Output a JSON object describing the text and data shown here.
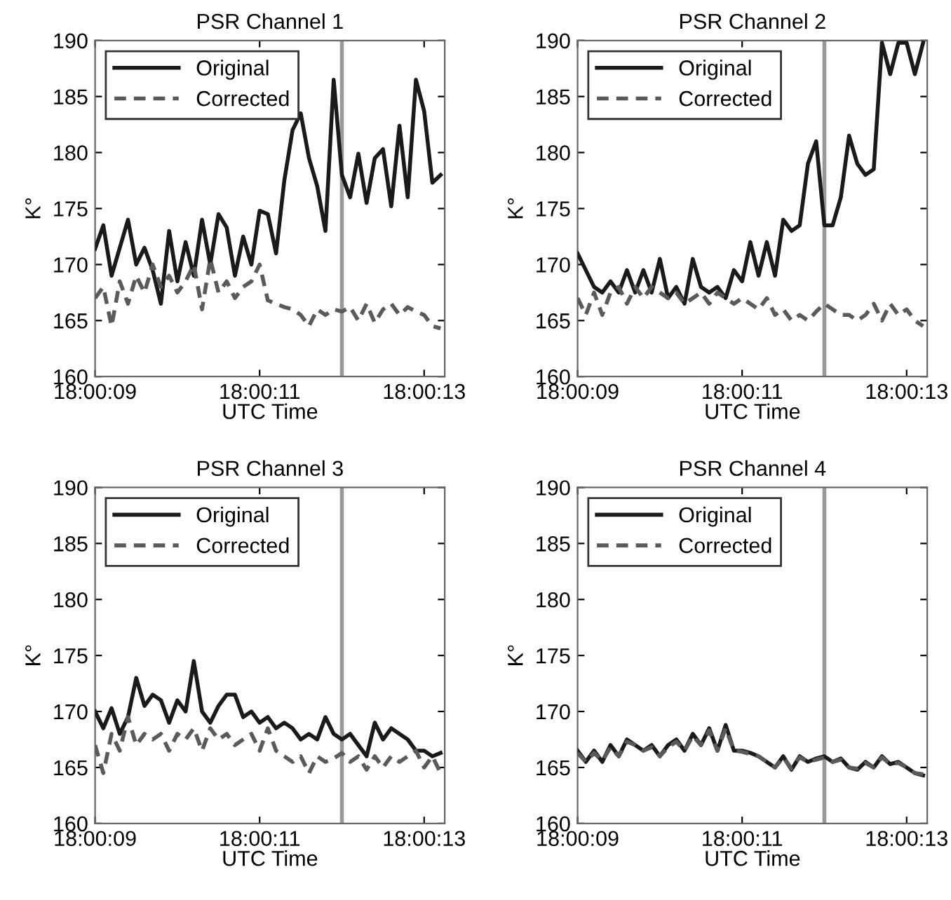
{
  "chart_data": [
    {
      "type": "line",
      "title": "PSR Channel 1",
      "xlabel": "UTC Time",
      "ylabel": "K°",
      "xlim": [
        18.0025,
        18.0036806
      ],
      "ylim": [
        160,
        190
      ],
      "xticks": [
        {
          "value": 18.0025,
          "label": "18:00:09"
        },
        {
          "value": 18.0030556,
          "label": "18:00:11"
        },
        {
          "value": 18.0036111,
          "label": "18:00:13"
        }
      ],
      "yticks": [
        160,
        165,
        170,
        175,
        180,
        185,
        190
      ],
      "grid": false,
      "legend": "top left",
      "ref_lines": [
        {
          "axis": "x",
          "value": 18.0033333,
          "color": "#999999"
        }
      ],
      "x": [
        18.0025,
        18.0025278,
        18.0025556,
        18.0025833,
        18.0026111,
        18.0026389,
        18.0026667,
        18.0026944,
        18.0027222,
        18.00275,
        18.0027778,
        18.0028056,
        18.0028333,
        18.0028611,
        18.0028889,
        18.0029167,
        18.0029444,
        18.0029722,
        18.003,
        18.0030278,
        18.0030556,
        18.0030833,
        18.0031111,
        18.0031389,
        18.0031667,
        18.0031944,
        18.0032222,
        18.00325,
        18.0032778,
        18.0033056,
        18.0033333,
        18.0033611,
        18.0033889,
        18.0034167,
        18.0034444,
        18.0034722,
        18.0035,
        18.0035278,
        18.0035556,
        18.0035833,
        18.0036111,
        18.0036389,
        18.0036667
      ],
      "series": [
        {
          "name": "Original",
          "color": "#1a1a1a",
          "line_style": "solid",
          "values": [
            171.4,
            173.5,
            169,
            171.5,
            174,
            170,
            171.5,
            169.5,
            166.5,
            173,
            168.5,
            172,
            169,
            174,
            170,
            174.5,
            173.3,
            169,
            172.5,
            170,
            174.8,
            174.5,
            171,
            177.5,
            182,
            183.5,
            179.5,
            177,
            173,
            186.5,
            178,
            176,
            179.9,
            175.5,
            179.5,
            180.3,
            175.2,
            182.4,
            176,
            186.5,
            183.7,
            177.3,
            178
          ]
        },
        {
          "name": "Corrected",
          "color": "#5a5a5a",
          "line_style": "dashed",
          "values": [
            167,
            168,
            164.5,
            168.5,
            166.5,
            169,
            167.5,
            170,
            168,
            169,
            167.5,
            168.5,
            170,
            166,
            170.5,
            167.5,
            168.5,
            167,
            168,
            168.5,
            170,
            166.8,
            166.5,
            166.2,
            166,
            165.5,
            164.5,
            166,
            165.5,
            166,
            165.8,
            166.2,
            165,
            166.5,
            164.8,
            166,
            166.5,
            165.5,
            166.2,
            165.8,
            165.5,
            164.5,
            164.3
          ]
        }
      ]
    },
    {
      "type": "line",
      "title": "PSR Channel 2",
      "xlabel": "UTC Time",
      "ylabel": "K°",
      "xlim": [
        18.0025,
        18.0036806
      ],
      "ylim": [
        160,
        190
      ],
      "xticks": [
        {
          "value": 18.0025,
          "label": "18:00:09"
        },
        {
          "value": 18.0030556,
          "label": "18:00:11"
        },
        {
          "value": 18.0036111,
          "label": "18:00:13"
        }
      ],
      "yticks": [
        160,
        165,
        170,
        175,
        180,
        185,
        190
      ],
      "grid": false,
      "legend": "top left",
      "ref_lines": [
        {
          "axis": "x",
          "value": 18.0033333,
          "color": "#999999"
        }
      ],
      "x": [
        18.0025,
        18.0025278,
        18.0025556,
        18.0025833,
        18.0026111,
        18.0026389,
        18.0026667,
        18.0026944,
        18.0027222,
        18.00275,
        18.0027778,
        18.0028056,
        18.0028333,
        18.0028611,
        18.0028889,
        18.0029167,
        18.0029444,
        18.0029722,
        18.003,
        18.0030278,
        18.0030556,
        18.0030833,
        18.0031111,
        18.0031389,
        18.0031667,
        18.0031944,
        18.0032222,
        18.00325,
        18.0032778,
        18.0033056,
        18.0033333,
        18.0033611,
        18.0033889,
        18.0034167,
        18.0034444,
        18.0034722,
        18.0035,
        18.0035278,
        18.0035556,
        18.0035833,
        18.0036111,
        18.0036389,
        18.0036667
      ],
      "series": [
        {
          "name": "Original",
          "color": "#1a1a1a",
          "line_style": "solid",
          "values": [
            171,
            169.5,
            168,
            167.5,
            168.5,
            167.5,
            169.5,
            167.5,
            169.5,
            167.5,
            170.5,
            167,
            168,
            166.5,
            170.5,
            168,
            167.5,
            168,
            167,
            169.5,
            168.5,
            172,
            169,
            172,
            169,
            174,
            173,
            173.5,
            179,
            181,
            173.5,
            173.5,
            176,
            181.5,
            179,
            178,
            178.5,
            189.8,
            187,
            189.8,
            189.8,
            187,
            189.8
          ]
        },
        {
          "name": "Corrected",
          "color": "#5a5a5a",
          "line_style": "dashed",
          "values": [
            167,
            165.5,
            167.5,
            165.5,
            167.5,
            168,
            166.5,
            168,
            167,
            168,
            167.5,
            167,
            167.5,
            166.5,
            167,
            167.5,
            166.5,
            167.5,
            167,
            166.5,
            167,
            166.5,
            166,
            167,
            165.5,
            166,
            165,
            165.5,
            165,
            165.8,
            166.5,
            166,
            165.5,
            165.5,
            165,
            165.5,
            166.5,
            165,
            166.5,
            165.5,
            166,
            165,
            164.5
          ]
        }
      ]
    },
    {
      "type": "line",
      "title": "PSR Channel 3",
      "xlabel": "UTC Time",
      "ylabel": "K°",
      "xlim": [
        18.0025,
        18.0036806
      ],
      "ylim": [
        160,
        190
      ],
      "xticks": [
        {
          "value": 18.0025,
          "label": "18:00:09"
        },
        {
          "value": 18.0030556,
          "label": "18:00:11"
        },
        {
          "value": 18.0036111,
          "label": "18:00:13"
        }
      ],
      "yticks": [
        160,
        165,
        170,
        175,
        180,
        185,
        190
      ],
      "grid": false,
      "legend": "top left",
      "ref_lines": [
        {
          "axis": "x",
          "value": 18.0033333,
          "color": "#999999"
        }
      ],
      "x": [
        18.0025,
        18.0025278,
        18.0025556,
        18.0025833,
        18.0026111,
        18.0026389,
        18.0026667,
        18.0026944,
        18.0027222,
        18.00275,
        18.0027778,
        18.0028056,
        18.0028333,
        18.0028611,
        18.0028889,
        18.0029167,
        18.0029444,
        18.0029722,
        18.003,
        18.0030278,
        18.0030556,
        18.0030833,
        18.0031111,
        18.0031389,
        18.0031667,
        18.0031944,
        18.0032222,
        18.00325,
        18.0032778,
        18.0033056,
        18.0033333,
        18.0033611,
        18.0033889,
        18.0034167,
        18.0034444,
        18.0034722,
        18.0035,
        18.0035278,
        18.0035556,
        18.0035833,
        18.0036111,
        18.0036389,
        18.0036667
      ],
      "series": [
        {
          "name": "Original",
          "color": "#1a1a1a",
          "line_style": "solid",
          "values": [
            170,
            168.5,
            170.3,
            168,
            169.5,
            173,
            170.5,
            171.5,
            171,
            169,
            171,
            170,
            174.5,
            170,
            169,
            170.5,
            171.5,
            171.5,
            169.5,
            170,
            169,
            169.5,
            168.5,
            169,
            168.5,
            167.5,
            168,
            167.5,
            169.5,
            168,
            167.5,
            168,
            167,
            166,
            169,
            167.5,
            168.5,
            168,
            167.5,
            166.5,
            166.5,
            166,
            166.3
          ]
        },
        {
          "name": "Corrected",
          "color": "#5a5a5a",
          "line_style": "dashed",
          "values": [
            167,
            164.5,
            168,
            166.5,
            169.5,
            167,
            168,
            167.5,
            168,
            166.5,
            168,
            167.5,
            168.5,
            166.5,
            168.5,
            167.5,
            168,
            167,
            167.5,
            168,
            166.5,
            168.5,
            166.5,
            166,
            165.5,
            166,
            164.5,
            166,
            165.5,
            165.8,
            166.3,
            165.5,
            166,
            164.8,
            166,
            165,
            166,
            165.5,
            166,
            166.5,
            165,
            166,
            164.5
          ]
        }
      ]
    },
    {
      "type": "line",
      "title": "PSR Channel 4",
      "xlabel": "UTC Time",
      "ylabel": "K°",
      "xlim": [
        18.0025,
        18.0036806
      ],
      "ylim": [
        160,
        190
      ],
      "xticks": [
        {
          "value": 18.0025,
          "label": "18:00:09"
        },
        {
          "value": 18.0030556,
          "label": "18:00:11"
        },
        {
          "value": 18.0036111,
          "label": "18:00:13"
        }
      ],
      "yticks": [
        160,
        165,
        170,
        175,
        180,
        185,
        190
      ],
      "grid": false,
      "legend": "top left",
      "ref_lines": [
        {
          "axis": "x",
          "value": 18.0033333,
          "color": "#999999"
        }
      ],
      "x": [
        18.0025,
        18.0025278,
        18.0025556,
        18.0025833,
        18.0026111,
        18.0026389,
        18.0026667,
        18.0026944,
        18.0027222,
        18.00275,
        18.0027778,
        18.0028056,
        18.0028333,
        18.0028611,
        18.0028889,
        18.0029167,
        18.0029444,
        18.0029722,
        18.003,
        18.0030278,
        18.0030556,
        18.0030833,
        18.0031111,
        18.0031389,
        18.0031667,
        18.0031944,
        18.0032222,
        18.00325,
        18.0032778,
        18.0033056,
        18.0033333,
        18.0033611,
        18.0033889,
        18.0034167,
        18.0034444,
        18.0034722,
        18.0035,
        18.0035278,
        18.0035556,
        18.0035833,
        18.0036111,
        18.0036389,
        18.0036667
      ],
      "series": [
        {
          "name": "Original",
          "color": "#1a1a1a",
          "line_style": "solid",
          "values": [
            166.5,
            165.5,
            166.5,
            165.5,
            167,
            166,
            167.5,
            167,
            166.5,
            167,
            166,
            167,
            167.5,
            166.5,
            168,
            167,
            168.5,
            166.5,
            168.8,
            166.5,
            166.5,
            166.3,
            166,
            165.5,
            165,
            166,
            164.8,
            166,
            165.5,
            165.8,
            166,
            165.5,
            165.8,
            165,
            164.8,
            165.5,
            165,
            166,
            165.3,
            165.5,
            165,
            164.5,
            164.3
          ]
        },
        {
          "name": "Corrected",
          "color": "#5a5a5a",
          "line_style": "dashed",
          "values": [
            166.3,
            165.5,
            166.3,
            165.6,
            166.8,
            166,
            167.3,
            167,
            166.5,
            166.8,
            166,
            166.8,
            167.3,
            166.5,
            167.8,
            167,
            168.3,
            166.5,
            168.5,
            166.5,
            166.4,
            166.2,
            166,
            165.5,
            165,
            165.9,
            164.9,
            165.9,
            165.5,
            165.7,
            165.9,
            165.5,
            165.7,
            165,
            164.9,
            165.4,
            165,
            165.9,
            165.3,
            165.4,
            165,
            164.5,
            164.4
          ]
        }
      ]
    }
  ]
}
